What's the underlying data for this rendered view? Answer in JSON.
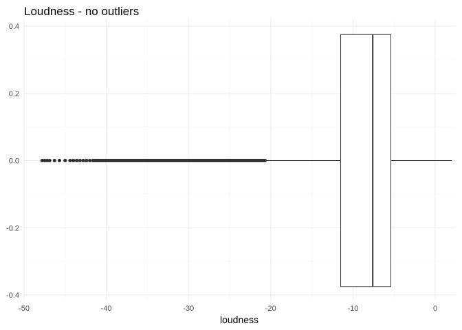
{
  "chart_data": {
    "type": "boxplot",
    "title": "Loudness - no outliers",
    "xlabel": "loudness",
    "ylabel": "",
    "xlim": [
      -50,
      2.5
    ],
    "ylim": [
      -0.4,
      0.4
    ],
    "x_ticks": [
      -50,
      -40,
      -30,
      -20,
      -10,
      0
    ],
    "x_tick_labels": [
      "-50",
      "-40",
      "-30",
      "-20",
      "-10",
      "0"
    ],
    "y_ticks": [
      -0.4,
      -0.2,
      0.0,
      0.2,
      0.4
    ],
    "y_tick_labels": [
      "-0.4",
      "-0.2",
      "0.0",
      "0.2",
      "0.4"
    ],
    "grid": true,
    "box": {
      "whisker_low": -20.7,
      "q1": -11.5,
      "median": -7.6,
      "q3": -5.4,
      "whisker_high": 2.0,
      "box_ymin": -0.375,
      "box_ymax": 0.375
    },
    "outliers": {
      "y": 0.0,
      "x": [
        -47.8,
        -47.5,
        -47.2,
        -46.9,
        -46.3,
        -45.7,
        -45.0,
        -44.4,
        -44.0,
        -43.6,
        -43.2,
        -42.8,
        -42.4,
        -42.0,
        -41.6
      ]
    },
    "outlier_band": {
      "from": -41.6,
      "to": -20.7,
      "y": 0.0
    }
  }
}
